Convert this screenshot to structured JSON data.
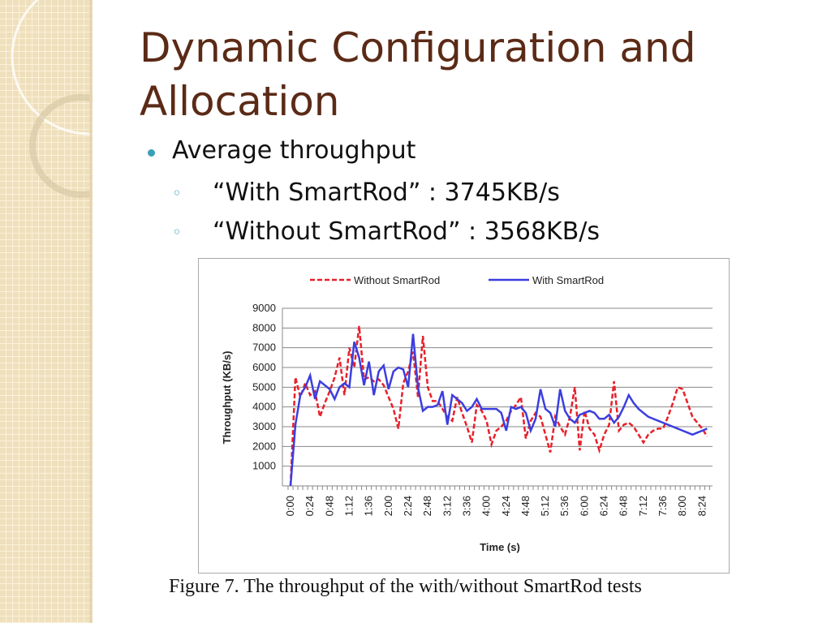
{
  "slide": {
    "title": "Dynamic Configuration and Allocation",
    "bullets": [
      {
        "text": "Average throughput",
        "sub": [
          "“With SmartRod”  : 3745KB/s",
          "“Without SmartRod”  :  3568KB/s"
        ]
      }
    ],
    "caption": "Figure 7. The throughput of the with/without SmartRod tests"
  },
  "chart_data": {
    "type": "line",
    "categories": [
      "0:00",
      null,
      null,
      null,
      "0:24",
      null,
      null,
      null,
      "0:48",
      null,
      null,
      null,
      "1:12",
      null,
      null,
      null,
      "1:36",
      null,
      null,
      null,
      "2:00",
      null,
      null,
      null,
      "2:24",
      null,
      null,
      null,
      "2:48",
      null,
      null,
      null,
      "3:12",
      null,
      null,
      null,
      "3:36",
      null,
      null,
      null,
      "4:00",
      null,
      null,
      null,
      "4:24",
      null,
      null,
      null,
      "4:48",
      null,
      null,
      null,
      "5:12",
      null,
      null,
      null,
      "5:36",
      null,
      null,
      null,
      "6:00",
      null,
      null,
      null,
      "6:24",
      null,
      null,
      null,
      "6:48",
      null,
      null,
      null,
      "7:12",
      null,
      null,
      null,
      "7:36",
      null,
      null,
      null,
      "8:00",
      null,
      null,
      null,
      "8:24",
      null
    ],
    "series": [
      {
        "name": "Without SmartRod",
        "color": "#e8202a",
        "dashed": true,
        "values": [
          0,
          5500,
          4500,
          5200,
          4600,
          4800,
          3500,
          4200,
          4800,
          5500,
          6500,
          4600,
          7000,
          6000,
          8100,
          5400,
          5500,
          5300,
          5400,
          5100,
          4500,
          3900,
          2900,
          5200,
          5800,
          6800,
          4500,
          7600,
          5000,
          4300,
          4300,
          3900,
          3500,
          3300,
          4500,
          3700,
          3000,
          2200,
          4100,
          3800,
          3300,
          2100,
          2800,
          3000,
          3300,
          3800,
          4100,
          4500,
          2400,
          3300,
          3700,
          3500,
          2600,
          1700,
          3500,
          3000,
          2600,
          3500,
          5000,
          1800,
          3800,
          2900,
          2600,
          1800,
          2600,
          3100,
          5300,
          2800,
          3100,
          3200,
          3000,
          2600,
          2200,
          2600,
          2800,
          2900,
          2900,
          3500,
          4200,
          5000,
          4900,
          4200,
          3500,
          3200,
          2900,
          2500
        ]
      },
      {
        "name": "With SmartRod",
        "color": "#3b3ee0",
        "dashed": false,
        "values": [
          0,
          3100,
          4600,
          5000,
          5600,
          4400,
          5300,
          5100,
          4900,
          4400,
          5000,
          5200,
          5000,
          7300,
          6500,
          5100,
          6300,
          4600,
          5800,
          6100,
          4900,
          5800,
          6000,
          5900,
          5000,
          7700,
          5000,
          3800,
          4000,
          4000,
          4100,
          4800,
          3100,
          4600,
          4400,
          4200,
          3800,
          4000,
          4400,
          3900,
          3900,
          3900,
          3900,
          3700,
          2800,
          4000,
          3900,
          4000,
          3700,
          2800,
          3400,
          4900,
          3900,
          3700,
          3000,
          4900,
          3800,
          3400,
          3200,
          3600,
          3700,
          3800,
          3700,
          3400,
          3400,
          3600,
          3200,
          3500,
          4000,
          4600,
          4200,
          3900,
          3700,
          3500,
          3400,
          3300,
          3200,
          3100,
          3000,
          2900,
          2800,
          2700,
          2600,
          2700,
          2800,
          2900
        ]
      }
    ],
    "ylim": [
      0,
      9000
    ],
    "yticks": [
      1000,
      2000,
      3000,
      4000,
      5000,
      6000,
      7000,
      8000,
      9000
    ],
    "xlabel": "Time (s)",
    "ylabel": "Throughput (KB/s)",
    "grid": true,
    "legend": "top"
  }
}
